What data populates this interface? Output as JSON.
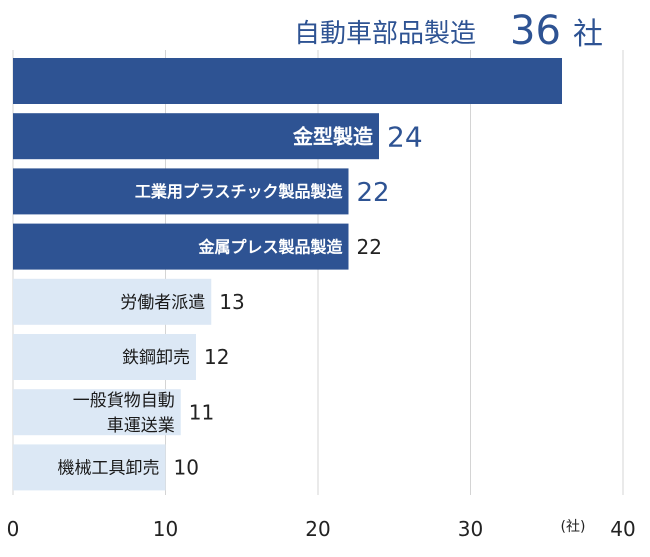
{
  "chart_data": {
    "type": "bar",
    "orientation": "horizontal",
    "categories": [
      "自動車部品製造",
      "金型製造",
      "工業用プラスチック製品製造",
      "金属プレス製品製造",
      "労働者派遣",
      "鉄鋼卸売",
      "一般貨物自動車運送業",
      "機械工具卸売"
    ],
    "category_lines": [
      [
        "自動車部品製造"
      ],
      [
        "金型製造"
      ],
      [
        "工業用プラスチック製品製造"
      ],
      [
        "金属プレス製品製造"
      ],
      [
        "労働者派遣"
      ],
      [
        "鉄鋼卸売"
      ],
      [
        "一般貨物自動",
        "車運送業"
      ],
      [
        "機械工具卸売"
      ]
    ],
    "values": [
      36,
      24,
      22,
      22,
      13,
      12,
      11,
      10
    ],
    "value_labels": [
      "36",
      "24",
      "22",
      "22",
      "13",
      "12",
      "11",
      "10"
    ],
    "first_value_suffix": "社",
    "x_unit": "(社)",
    "xlim": [
      0,
      40
    ],
    "xticks": [
      0,
      10,
      20,
      30,
      40
    ],
    "grid": "vertical",
    "colors": {
      "highlight_bar": "#2e5393",
      "other_bar": "#dce8f5",
      "label_dark": "#2e5393",
      "label_light": "#1a1a1a",
      "grid": "#d4d4d4"
    },
    "highlight_count": 4
  }
}
